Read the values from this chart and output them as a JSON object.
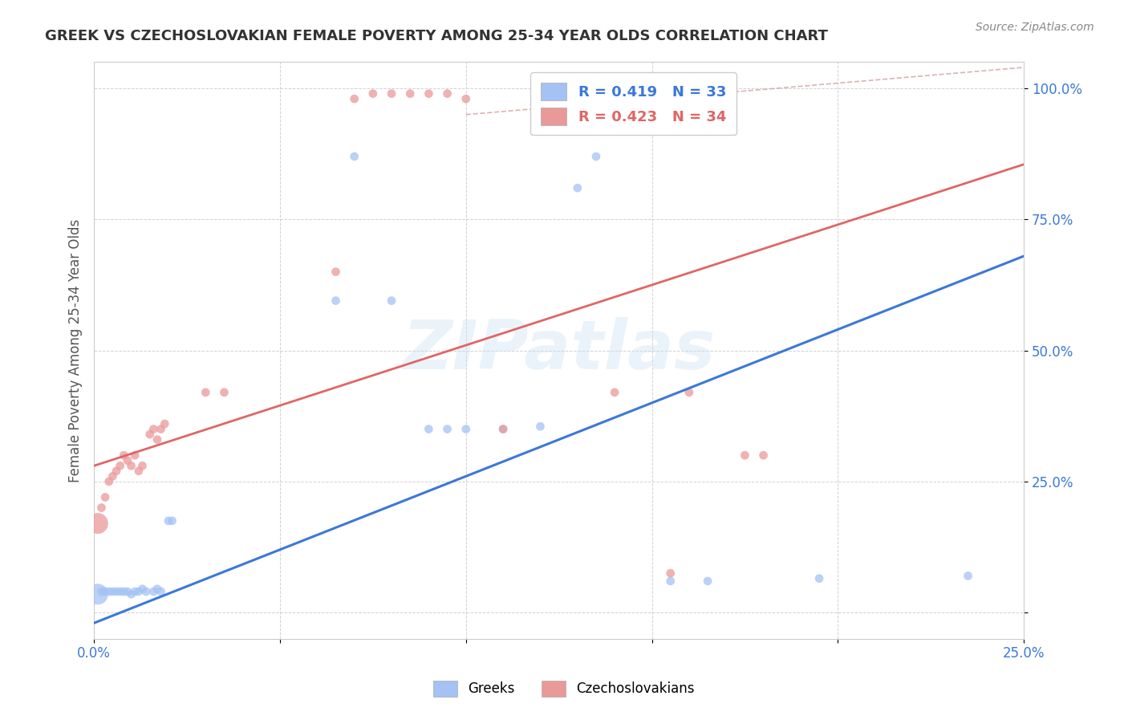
{
  "title": "GREEK VS CZECHOSLOVAKIAN FEMALE POVERTY AMONG 25-34 YEAR OLDS CORRELATION CHART",
  "source": "Source: ZipAtlas.com",
  "ylabel": "Female Poverty Among 25-34 Year Olds",
  "xlim": [
    0.0,
    0.25
  ],
  "ylim": [
    -0.05,
    1.05
  ],
  "blue_color": "#a4c2f4",
  "pink_color": "#ea9999",
  "blue_line_color": "#3c78d8",
  "pink_line_color": "#e06666",
  "blue_R": 0.419,
  "blue_N": 33,
  "pink_R": 0.423,
  "pink_N": 34,
  "greeks_label": "Greeks",
  "czechoslovakians_label": "Czechoslovakians",
  "watermark": "ZIPatlas",
  "background_color": "#ffffff",
  "blue_intercept": -0.02,
  "blue_slope": 2.8,
  "pink_intercept": 0.28,
  "pink_slope": 2.3,
  "greek_x": [
    0.001,
    0.002,
    0.003,
    0.004,
    0.005,
    0.006,
    0.007,
    0.008,
    0.009,
    0.01,
    0.011,
    0.012,
    0.013,
    0.014,
    0.016,
    0.017,
    0.018,
    0.02,
    0.021,
    0.065,
    0.07,
    0.08,
    0.09,
    0.095,
    0.1,
    0.11,
    0.12,
    0.13,
    0.135,
    0.155,
    0.165,
    0.195,
    0.235
  ],
  "greek_y": [
    0.035,
    0.04,
    0.04,
    0.04,
    0.04,
    0.04,
    0.04,
    0.04,
    0.04,
    0.035,
    0.04,
    0.04,
    0.045,
    0.04,
    0.04,
    0.045,
    0.04,
    0.175,
    0.175,
    0.595,
    0.87,
    0.595,
    0.35,
    0.35,
    0.35,
    0.35,
    0.355,
    0.81,
    0.87,
    0.06,
    0.06,
    0.065,
    0.07
  ],
  "greek_sizes": [
    350,
    60,
    60,
    60,
    60,
    60,
    60,
    60,
    60,
    60,
    60,
    60,
    60,
    60,
    60,
    60,
    60,
    60,
    60,
    60,
    60,
    60,
    60,
    60,
    60,
    60,
    60,
    60,
    60,
    60,
    60,
    60,
    60
  ],
  "czech_x": [
    0.001,
    0.002,
    0.003,
    0.004,
    0.005,
    0.006,
    0.007,
    0.008,
    0.009,
    0.01,
    0.011,
    0.012,
    0.013,
    0.015,
    0.016,
    0.017,
    0.018,
    0.019,
    0.03,
    0.035,
    0.065,
    0.07,
    0.075,
    0.08,
    0.085,
    0.09,
    0.095,
    0.1,
    0.11,
    0.14,
    0.155,
    0.16,
    0.175,
    0.18
  ],
  "czech_y": [
    0.17,
    0.2,
    0.22,
    0.25,
    0.26,
    0.27,
    0.28,
    0.3,
    0.29,
    0.28,
    0.3,
    0.27,
    0.28,
    0.34,
    0.35,
    0.33,
    0.35,
    0.36,
    0.42,
    0.42,
    0.65,
    0.98,
    0.99,
    0.99,
    0.99,
    0.99,
    0.99,
    0.98,
    0.35,
    0.42,
    0.075,
    0.42,
    0.3,
    0.3
  ],
  "czech_sizes": [
    350,
    60,
    60,
    60,
    60,
    60,
    60,
    60,
    60,
    60,
    60,
    60,
    60,
    60,
    60,
    60,
    60,
    60,
    60,
    60,
    60,
    60,
    60,
    60,
    60,
    60,
    60,
    60,
    60,
    60,
    60,
    60,
    60,
    60
  ]
}
